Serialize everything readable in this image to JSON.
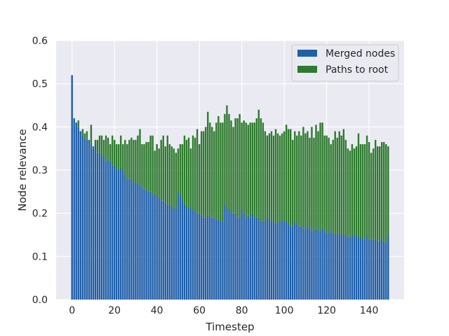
{
  "chart_data": {
    "type": "bar",
    "stacked": true,
    "xlabel": "Timestep",
    "ylabel": "Node relevance",
    "xlim": [
      -7.5,
      156.5
    ],
    "ylim": [
      0,
      0.6
    ],
    "xticks": [
      0,
      20,
      40,
      60,
      80,
      100,
      120,
      140
    ],
    "yticks": [
      0.0,
      0.1,
      0.2,
      0.3,
      0.4,
      0.5,
      0.6
    ],
    "ytick_labels": [
      "0.0",
      "0.1",
      "0.2",
      "0.3",
      "0.4",
      "0.5",
      "0.6"
    ],
    "grid": true,
    "legend_position": "top-right",
    "colors": {
      "background": "#eaeaf2",
      "grid": "#ffffff",
      "merged": "#1f5fa8",
      "paths": "#2e7a2e"
    },
    "x_start": 0,
    "series": [
      {
        "name": "Merged nodes",
        "values": [
          0.52,
          0.42,
          0.41,
          0.4,
          0.39,
          0.38,
          0.375,
          0.37,
          0.37,
          0.36,
          0.35,
          0.36,
          0.34,
          0.34,
          0.33,
          0.33,
          0.32,
          0.325,
          0.32,
          0.31,
          0.31,
          0.3,
          0.3,
          0.305,
          0.3,
          0.29,
          0.28,
          0.28,
          0.28,
          0.27,
          0.27,
          0.27,
          0.265,
          0.26,
          0.255,
          0.255,
          0.25,
          0.25,
          0.24,
          0.245,
          0.24,
          0.235,
          0.23,
          0.23,
          0.225,
          0.22,
          0.22,
          0.215,
          0.21,
          0.21,
          0.25,
          0.24,
          0.23,
          0.22,
          0.215,
          0.21,
          0.215,
          0.21,
          0.205,
          0.2,
          0.2,
          0.195,
          0.19,
          0.19,
          0.195,
          0.19,
          0.19,
          0.19,
          0.185,
          0.185,
          0.18,
          0.18,
          0.22,
          0.21,
          0.21,
          0.205,
          0.2,
          0.2,
          0.19,
          0.19,
          0.21,
          0.2,
          0.19,
          0.195,
          0.19,
          0.2,
          0.19,
          0.19,
          0.19,
          0.18,
          0.18,
          0.18,
          0.19,
          0.185,
          0.18,
          0.18,
          0.175,
          0.175,
          0.18,
          0.185,
          0.18,
          0.18,
          0.175,
          0.17,
          0.17,
          0.18,
          0.175,
          0.17,
          0.17,
          0.165,
          0.165,
          0.17,
          0.165,
          0.16,
          0.16,
          0.165,
          0.16,
          0.16,
          0.165,
          0.16,
          0.155,
          0.155,
          0.16,
          0.155,
          0.15,
          0.15,
          0.155,
          0.15,
          0.15,
          0.15,
          0.145,
          0.145,
          0.15,
          0.15,
          0.145,
          0.145,
          0.145,
          0.14,
          0.14,
          0.15,
          0.14,
          0.14,
          0.14,
          0.14,
          0.135,
          0.135,
          0.14,
          0.135,
          0.13,
          0.15
        ]
      },
      {
        "name": "Paths to root",
        "values": [
          0.0,
          0.0,
          0.0,
          0.015,
          0.0,
          0.015,
          0.01,
          0.02,
          0.0,
          0.045,
          0.005,
          0.01,
          0.03,
          0.04,
          0.05,
          0.04,
          0.06,
          0.05,
          0.04,
          0.07,
          0.06,
          0.06,
          0.06,
          0.075,
          0.06,
          0.08,
          0.08,
          0.09,
          0.095,
          0.1,
          0.1,
          0.11,
          0.13,
          0.1,
          0.105,
          0.11,
          0.115,
          0.13,
          0.14,
          0.1,
          0.12,
          0.115,
          0.14,
          0.15,
          0.13,
          0.16,
          0.14,
          0.14,
          0.14,
          0.13,
          0.1,
          0.12,
          0.13,
          0.16,
          0.155,
          0.165,
          0.135,
          0.17,
          0.17,
          0.195,
          0.16,
          0.195,
          0.2,
          0.21,
          0.24,
          0.22,
          0.21,
          0.2,
          0.225,
          0.24,
          0.23,
          0.23,
          0.21,
          0.24,
          0.22,
          0.21,
          0.2,
          0.22,
          0.23,
          0.24,
          0.2,
          0.215,
          0.22,
          0.21,
          0.22,
          0.21,
          0.22,
          0.23,
          0.25,
          0.24,
          0.23,
          0.21,
          0.19,
          0.2,
          0.21,
          0.2,
          0.22,
          0.21,
          0.2,
          0.2,
          0.21,
          0.225,
          0.22,
          0.225,
          0.2,
          0.21,
          0.205,
          0.22,
          0.21,
          0.235,
          0.22,
          0.22,
          0.21,
          0.24,
          0.215,
          0.24,
          0.23,
          0.25,
          0.245,
          0.22,
          0.225,
          0.22,
          0.2,
          0.215,
          0.24,
          0.225,
          0.235,
          0.23,
          0.245,
          0.22,
          0.205,
          0.2,
          0.21,
          0.2,
          0.21,
          0.24,
          0.215,
          0.22,
          0.22,
          0.23,
          0.225,
          0.2,
          0.21,
          0.23,
          0.22,
          0.22,
          0.225,
          0.23,
          0.23,
          0.205
        ]
      }
    ]
  }
}
